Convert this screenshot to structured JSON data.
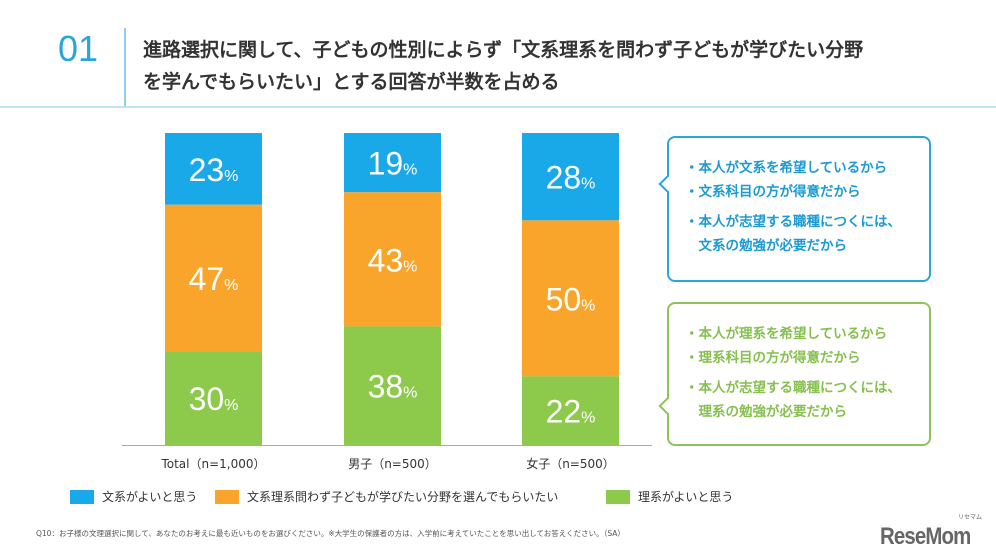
{
  "header": {
    "number": "01",
    "title_line1": "進路選択に関して、子どもの性別によらず「文系理系を問わず子どもが学びたい分野",
    "title_line2": "を学んでもらいたい」とする回答が半数を占める"
  },
  "chart_data": {
    "type": "bar",
    "stacked": true,
    "percent": true,
    "categories": [
      "Total（n=1,000）",
      "男子（n=500）",
      "女子（n=500）"
    ],
    "series": [
      {
        "name": "文系がよいと思う",
        "color": "#1aa9e8",
        "values": [
          23,
          19,
          28
        ]
      },
      {
        "name": "文系理系問わず子どもが学びたい分野を選んでもらいたい",
        "color": "#f9a52c",
        "values": [
          47,
          43,
          50
        ]
      },
      {
        "name": "理系がよいと思う",
        "color": "#8dc94a",
        "values": [
          30,
          38,
          22
        ]
      }
    ],
    "unit": "%",
    "ylim": [
      0,
      100
    ],
    "grid": false,
    "legend_position": "bottom"
  },
  "callouts": {
    "bunkei": [
      "・本人が文系を希望しているから",
      "・文系科目の方が得意だから",
      "・本人が志望する職種につくには、",
      "　文系の勉強が必要だから"
    ],
    "rikei": [
      "・本人が理系を希望しているから",
      "・理系科目の方が得意だから",
      "・本人が志望する職種につくには、",
      "　理系の勉強が必要だから"
    ]
  },
  "footnote": "Q10：お子様の文理選択に関して、あなたのお考えに最も近いものをお選びください。※大学生の保護者の方は、入学前に考えていたことを思い出してお答えください。（SA）",
  "logo": {
    "text": "ReseMom",
    "ruby": "リセマム"
  }
}
